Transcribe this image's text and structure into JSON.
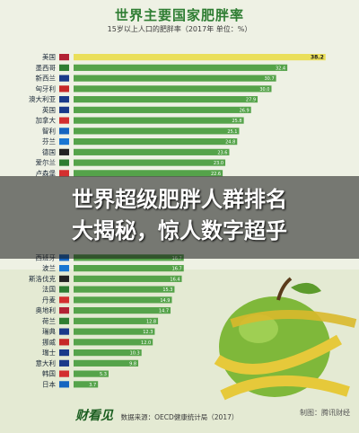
{
  "headline": {
    "line1": "世界超级肥胖人群排名",
    "line2": "大揭秘，惊人数字超乎"
  },
  "footer": {
    "brand": "财看见",
    "source": "数据来源：OECD健康统计局（2017）",
    "watermark_prefix": "制图：",
    "watermark": "腾讯财经"
  },
  "colors": {
    "bar": "#55a34a",
    "bar_top": "#eadf5a",
    "title": "#2e7d32"
  },
  "chart_data": {
    "type": "bar",
    "orientation": "horizontal",
    "title": "世界主要国家肥胖率",
    "subtitle": "15岁以上人口的肥胖率（2017年 单位：%）",
    "categories": [
      "美国",
      "墨西哥",
      "新西兰",
      "匈牙利",
      "澳大利亚",
      "英国",
      "加拿大",
      "智利",
      "芬兰",
      "德国",
      "爱尔兰",
      "卢森堡",
      "",
      "",
      "",
      "",
      "",
      "",
      "",
      "西班牙",
      "波兰",
      "斯洛伐克",
      "法国",
      "丹麦",
      "奥地利",
      "荷兰",
      "瑞典",
      "挪威",
      "瑞士",
      "意大利",
      "韩国",
      "日本"
    ],
    "values": [
      38.2,
      32.4,
      30.7,
      30.0,
      27.9,
      26.9,
      25.8,
      25.1,
      24.8,
      23.6,
      23.0,
      22.6,
      null,
      null,
      null,
      null,
      null,
      null,
      null,
      16.7,
      16.7,
      16.4,
      15.3,
      14.9,
      14.7,
      12.8,
      12.3,
      12.0,
      10.3,
      9.8,
      5.3,
      3.7
    ],
    "value_labels": [
      "38.2",
      "32.4",
      "30.7",
      "30.0",
      "27.9",
      "26.9",
      "25.8",
      "25.1",
      "24.8",
      "23.6",
      "23.0",
      "22.6",
      "",
      "",
      "",
      "",
      "",
      "",
      "",
      "16.7",
      "16.7",
      "16.4",
      "15.3",
      "14.9",
      "14.7",
      "12.8",
      "12.3",
      "12.0",
      "10.3",
      "9.8",
      "5.3",
      "3.7"
    ],
    "xlim": [
      0,
      40
    ],
    "grid": false,
    "legend": "none"
  }
}
